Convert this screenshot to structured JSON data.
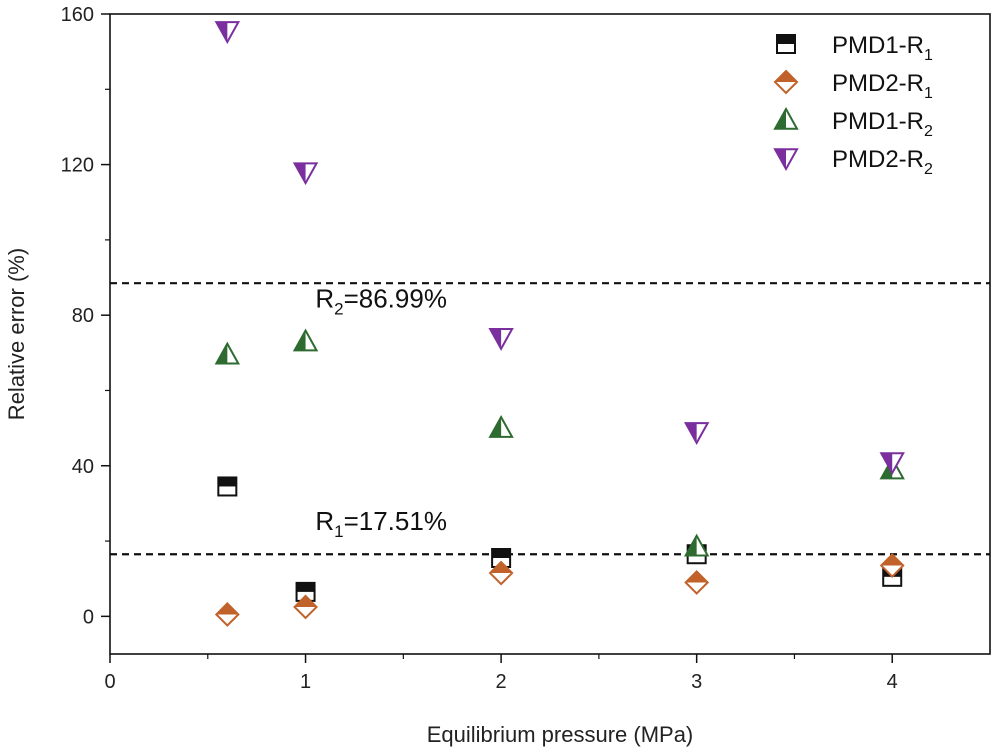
{
  "chart_data": {
    "type": "scatter",
    "xlabel": "Equilibrium pressure (MPa)",
    "ylabel": "Relative error (%)",
    "xlim": [
      0,
      4.5
    ],
    "ylim": [
      -10,
      160
    ],
    "xticks": [
      0,
      1,
      2,
      3,
      4
    ],
    "yticks": [
      0,
      40,
      80,
      120,
      160
    ],
    "series": [
      {
        "name": "PMD1-R1",
        "label_main": "PMD1-R",
        "label_sub": "1",
        "marker": "square-half",
        "color": "#111111",
        "x": [
          0.6,
          1.0,
          2.0,
          3.0,
          4.0
        ],
        "y": [
          34.5,
          6.5,
          15.5,
          16.5,
          10.5
        ]
      },
      {
        "name": "PMD2-R1",
        "label_main": "PMD2-R",
        "label_sub": "1",
        "marker": "diamond-half",
        "color": "#c0622a",
        "x": [
          0.6,
          1.0,
          2.0,
          3.0,
          4.0
        ],
        "y": [
          0.5,
          2.5,
          11.5,
          9.0,
          13.5
        ]
      },
      {
        "name": "PMD1-R2",
        "label_main": "PMD1-R",
        "label_sub": "2",
        "marker": "triangle-up-half",
        "color": "#2e6b30",
        "x": [
          0.6,
          1.0,
          2.0,
          3.0,
          4.0
        ],
        "y": [
          69.5,
          73.0,
          50.0,
          18.5,
          39.0
        ]
      },
      {
        "name": "PMD2-R2",
        "label_main": "PMD2-R",
        "label_sub": "2",
        "marker": "triangle-down-half",
        "color": "#7b2f9e",
        "x": [
          0.6,
          1.0,
          2.0,
          3.0,
          4.0
        ],
        "y": [
          155.5,
          118.0,
          74.0,
          49.0,
          41.0
        ]
      }
    ],
    "reference_lines": [
      {
        "y": 88.5,
        "label_main": "R",
        "label_sub": "2",
        "label_rest": "=86.99%",
        "label_x": 1.05,
        "label_y": 82
      },
      {
        "y": 16.5,
        "label_main": "R",
        "label_sub": "1",
        "label_rest": "=17.51%",
        "label_x": 1.05,
        "label_y": 23
      }
    ],
    "legend": "top-right"
  }
}
